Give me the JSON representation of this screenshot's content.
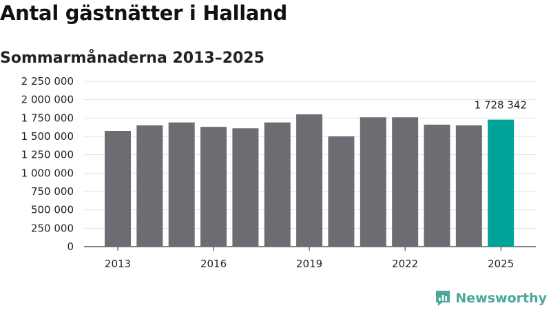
{
  "title": "Antal gästnätter i Halland",
  "subtitle": "Sommarmånaderna 2013–2025",
  "brand": {
    "name": "Newsworthy",
    "icon": "bar-chart-bubble-icon",
    "color": "#4aa99a"
  },
  "chart_data": {
    "type": "bar",
    "title": "Antal gästnätter i Halland",
    "subtitle": "Sommarmånaderna 2013–2025",
    "xlabel": "",
    "ylabel": "",
    "categories": [
      "2013",
      "2014",
      "2015",
      "2016",
      "2017",
      "2018",
      "2019",
      "2020",
      "2021",
      "2022",
      "2023",
      "2024",
      "2025"
    ],
    "values": [
      1575000,
      1650000,
      1690000,
      1630000,
      1610000,
      1690000,
      1800000,
      1500000,
      1760000,
      1760000,
      1660000,
      1650000,
      1728342
    ],
    "ylim": [
      0,
      2250000
    ],
    "yticks": [
      0,
      250000,
      500000,
      750000,
      1000000,
      1250000,
      1500000,
      1750000,
      2000000,
      2250000
    ],
    "ytick_labels": [
      "0",
      "250 000",
      "500 000",
      "750 000",
      "1 000 000",
      "1 250 000",
      "1 500 000",
      "1 750 000",
      "2 000 000",
      "2 250 000"
    ],
    "xticks": [
      "2013",
      "2016",
      "2019",
      "2022",
      "2025"
    ],
    "highlight": {
      "category": "2025",
      "label": "1 728 342"
    },
    "colors": {
      "bar": "#6d6c72",
      "highlight": "#00a29a",
      "grid": "#e0e0e0",
      "axis": "#333333"
    },
    "grid": true,
    "legend": "none"
  }
}
